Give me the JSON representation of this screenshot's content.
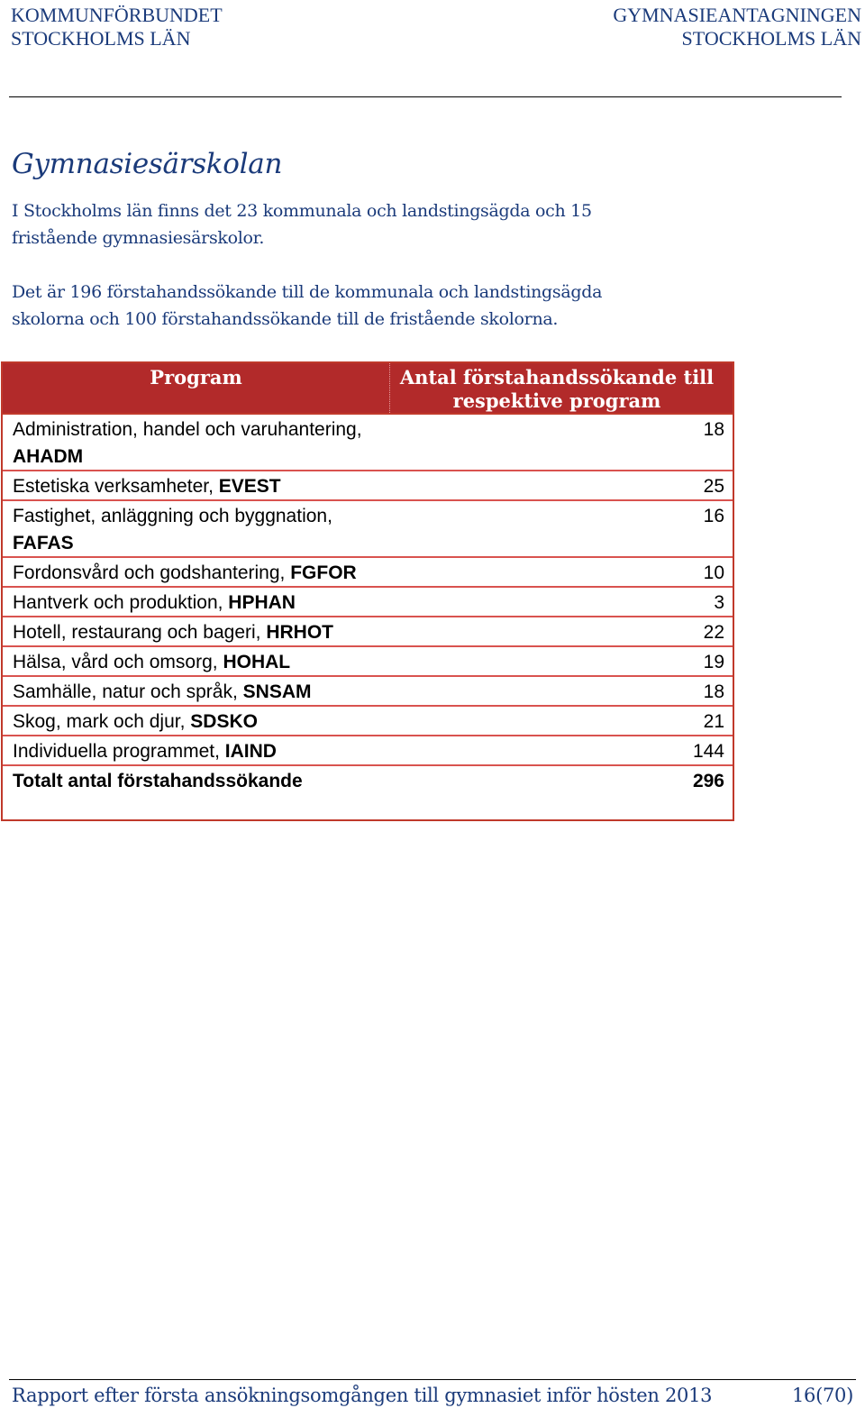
{
  "header": {
    "left_line1": "KOMMUNFÖRBUNDET",
    "left_line2": "STOCKHOLMS LÄN",
    "right_line1": "GYMNASIEANTAGNINGEN",
    "right_line2": "STOCKHOLMS LÄN"
  },
  "title": "Gymnasiesärskolan",
  "paragraphs": {
    "p1": "I Stockholms län finns det 23 kommunala och landstingsägda och 15 fristående gymnasiesärskolor.",
    "p2": "Det är 196 förstahandssökande till de kommunala och landstingsägda skolorna och 100 förstahandssökande till de fristående skolorna."
  },
  "table": {
    "col_program": "Program",
    "col_count": "Antal förstahandssökande till respektive program",
    "rows": [
      {
        "name": "Administration, handel och varuhantering, ",
        "code": "AHADM",
        "value": "18"
      },
      {
        "name": "Estetiska verksamheter, ",
        "code": "EVEST",
        "value": "25"
      },
      {
        "name": "Fastighet, anläggning och byggnation, ",
        "code": "FAFAS",
        "value": "16"
      },
      {
        "name": "Fordonsvård och godshantering, ",
        "code": "FGFOR",
        "value": "10"
      },
      {
        "name": "Hantverk och produktion, ",
        "code": "HPHAN",
        "value": "3"
      },
      {
        "name": "Hotell, restaurang och bageri, ",
        "code": "HRHOT",
        "value": "22"
      },
      {
        "name": "Hälsa, vård och omsorg, ",
        "code": "HOHAL",
        "value": "19"
      },
      {
        "name": "Samhälle, natur och språk, ",
        "code": "SNSAM",
        "value": "18"
      },
      {
        "name": "Skog, mark och djur, ",
        "code": "SDSKO",
        "value": "21"
      },
      {
        "name": "Individuella programmet, ",
        "code": "IAIND",
        "value": "144"
      }
    ],
    "total_label": "Totalt antal förstahandssökande",
    "total_value": "296"
  },
  "footer": {
    "text": "Rapport efter första ansökningsomgången till gymnasiet inför hösten 2013",
    "page": "16(70)"
  }
}
